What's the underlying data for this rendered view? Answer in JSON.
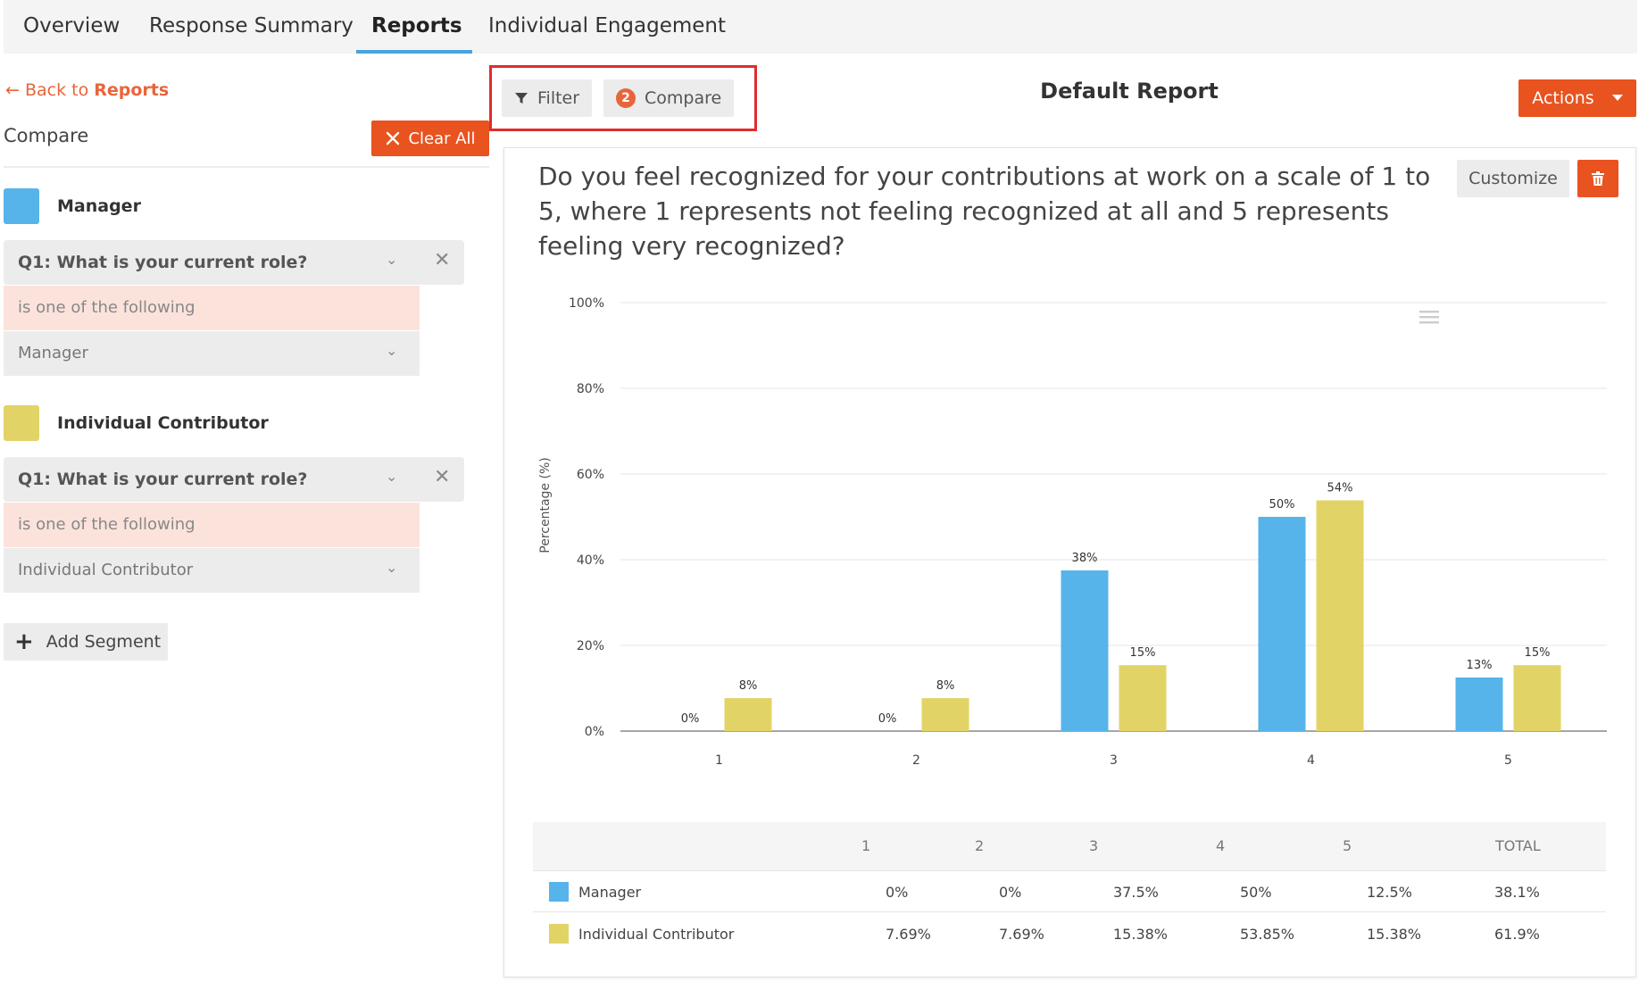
{
  "nav": {
    "tabs": [
      {
        "label": "Overview"
      },
      {
        "label": "Response Summary"
      },
      {
        "label": "Reports"
      },
      {
        "label": "Individual Engagement"
      }
    ],
    "active": "Reports"
  },
  "sidebar": {
    "back_prefix": "Back to",
    "back_target": "Reports",
    "compare_label": "Compare",
    "clear_all_label": "Clear All",
    "segments": [
      {
        "name": "Manager",
        "color": "#56b4ea",
        "question": "Q1: What is your current role?",
        "condition": "is one of the following",
        "value": "Manager"
      },
      {
        "name": "Individual Contributor",
        "color": "#e2d366",
        "question": "Q1: What is your current role?",
        "condition": "is one of the following",
        "value": "Individual Contributor"
      }
    ],
    "add_segment_label": "Add Segment"
  },
  "toolbar": {
    "filter_label": "Filter",
    "compare_label": "Compare",
    "compare_count": "2",
    "report_title": "Default Report",
    "actions_label": "Actions"
  },
  "card": {
    "question": "Do you feel recognized for your contributions at work on a scale of 1 to 5, where 1 represents not feeling recognized at all and 5 represents feeling very recognized?",
    "customize_label": "Customize"
  },
  "chart_data": {
    "type": "bar",
    "title": "",
    "xlabel": "",
    "ylabel": "Percentage (%)",
    "categories": [
      "1",
      "2",
      "3",
      "4",
      "5"
    ],
    "ylim": [
      0,
      100
    ],
    "yticks": [
      "0%",
      "20%",
      "40%",
      "60%",
      "80%",
      "100%"
    ],
    "series": [
      {
        "name": "Manager",
        "color": "#56b4ea",
        "values": [
          0,
          0,
          37.5,
          50,
          12.5
        ],
        "labels": [
          "0%",
          "0%",
          "38%",
          "50%",
          "13%"
        ]
      },
      {
        "name": "Individual Contributor",
        "color": "#e2d366",
        "values": [
          7.69,
          7.69,
          15.38,
          53.85,
          15.38
        ],
        "labels": [
          "8%",
          "8%",
          "15%",
          "54%",
          "15%"
        ]
      }
    ]
  },
  "table": {
    "headers": [
      "1",
      "2",
      "3",
      "4",
      "5",
      "TOTAL"
    ],
    "rows": [
      {
        "name": "Manager",
        "color": "#56b4ea",
        "cells": [
          "0%",
          "0%",
          "37.5%",
          "50%",
          "12.5%",
          "38.1%"
        ]
      },
      {
        "name": "Individual Contributor",
        "color": "#e2d366",
        "cells": [
          "7.69%",
          "7.69%",
          "15.38%",
          "53.85%",
          "15.38%",
          "61.9%"
        ]
      }
    ]
  }
}
